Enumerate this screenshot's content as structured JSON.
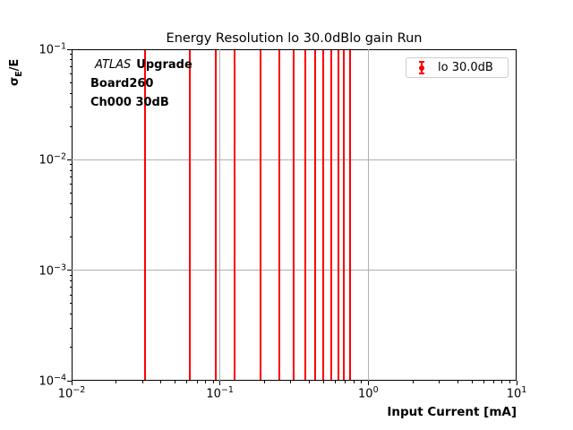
{
  "title": "Energy Resolution lo 30.0dBlo gain Run",
  "xlabel": "Input Current [mA]",
  "ylabel": {
    "sigma": "σ",
    "subscript": "E",
    "rest": "/E"
  },
  "annotation": {
    "line1_italic": "ATLAS",
    "line1_bold": "Upgrade",
    "line2": "Board260",
    "line3": "Ch000 30dB"
  },
  "legend": {
    "label": "lo 30.0dB"
  },
  "colors": {
    "series": "#ff0000",
    "grid": "#b0b0b0",
    "axis": "#000000",
    "legend_border": "#cccccc",
    "background": "#ffffff"
  },
  "chart_data": {
    "type": "scatter",
    "title": "Energy Resolution lo 30.0dBlo gain Run",
    "xlabel": "Input Current [mA]",
    "ylabel": "sigma_E/E",
    "xscale": "log",
    "yscale": "log",
    "xlim": [
      0.01,
      10
    ],
    "ylim": [
      0.0001,
      0.1
    ],
    "x_tick_exponents": [
      -2,
      -1,
      0,
      1
    ],
    "y_tick_exponents": [
      -1,
      -2,
      -3,
      -4
    ],
    "grid": true,
    "legend_position": "upper right",
    "series": [
      {
        "name": "lo 30.0dB",
        "color": "#ff0000",
        "marker": "errorbar",
        "x": [
          0.03125,
          0.0625,
          0.09375,
          0.125,
          0.1875,
          0.25,
          0.3125,
          0.375,
          0.4375,
          0.5,
          0.5625,
          0.625,
          0.6875,
          0.75
        ],
        "note": "vertical error bars span the full visible y-range (clipped at both plot bounds); central values not visible"
      }
    ]
  }
}
